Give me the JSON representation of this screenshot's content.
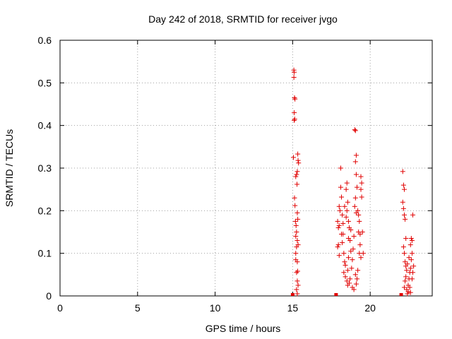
{
  "chart_data": {
    "type": "scatter",
    "title": "Day 242 of 2018, SRMTID for receiver jvgo",
    "xlabel": "GPS time / hours",
    "ylabel": "SRMTID / TECUs",
    "xlim": [
      0,
      24
    ],
    "ylim": [
      0,
      0.6
    ],
    "xticks": [
      0,
      5,
      10,
      15,
      20
    ],
    "xtick_labels": [
      "0",
      "5",
      "10",
      "15",
      "20"
    ],
    "yticks": [
      0,
      0.1,
      0.2,
      0.3,
      0.4,
      0.5,
      0.6
    ],
    "ytick_labels": [
      "0",
      "0.1",
      "0.2",
      "0.3",
      "0.4",
      "0.5",
      "0.6"
    ],
    "grid": true,
    "marker": "+",
    "color": "#e00000",
    "series": [
      {
        "name": "SRMTID",
        "points": [
          [
            15.08,
            0.53
          ],
          [
            15.1,
            0.525
          ],
          [
            15.08,
            0.513
          ],
          [
            15.12,
            0.465
          ],
          [
            15.15,
            0.462
          ],
          [
            15.1,
            0.43
          ],
          [
            15.13,
            0.415
          ],
          [
            15.1,
            0.412
          ],
          [
            15.05,
            0.325
          ],
          [
            15.33,
            0.333
          ],
          [
            15.35,
            0.318
          ],
          [
            15.38,
            0.312
          ],
          [
            15.3,
            0.292
          ],
          [
            15.25,
            0.285
          ],
          [
            15.2,
            0.28
          ],
          [
            15.28,
            0.262
          ],
          [
            15.12,
            0.23
          ],
          [
            15.15,
            0.212
          ],
          [
            15.3,
            0.195
          ],
          [
            15.33,
            0.18
          ],
          [
            15.18,
            0.175
          ],
          [
            15.22,
            0.165
          ],
          [
            15.25,
            0.15
          ],
          [
            15.3,
            0.13
          ],
          [
            15.2,
            0.14
          ],
          [
            15.35,
            0.12
          ],
          [
            15.25,
            0.115
          ],
          [
            15.2,
            0.085
          ],
          [
            15.3,
            0.08
          ],
          [
            15.32,
            0.058
          ],
          [
            15.25,
            0.055
          ],
          [
            15.3,
            0.035
          ],
          [
            15.35,
            0.025
          ],
          [
            15.25,
            0.015
          ],
          [
            15.3,
            0.005
          ],
          [
            15.2,
            0.1
          ],
          [
            17.9,
            0.175
          ],
          [
            17.95,
            0.16
          ],
          [
            18.0,
            0.165
          ],
          [
            17.95,
            0.12
          ],
          [
            17.9,
            0.115
          ],
          [
            18.0,
            0.095
          ],
          [
            18.05,
            0.2
          ],
          [
            18.0,
            0.21
          ],
          [
            18.1,
            0.255
          ],
          [
            18.1,
            0.3
          ],
          [
            18.15,
            0.232
          ],
          [
            18.2,
            0.19
          ],
          [
            18.25,
            0.145
          ],
          [
            18.2,
            0.125
          ],
          [
            18.3,
            0.1
          ],
          [
            18.35,
            0.08
          ],
          [
            18.4,
            0.072
          ],
          [
            18.45,
            0.25
          ],
          [
            18.5,
            0.265
          ],
          [
            18.55,
            0.22
          ],
          [
            18.5,
            0.2
          ],
          [
            18.6,
            0.175
          ],
          [
            18.65,
            0.16
          ],
          [
            18.6,
            0.135
          ],
          [
            18.7,
            0.13
          ],
          [
            18.75,
            0.105
          ],
          [
            18.6,
            0.09
          ],
          [
            18.55,
            0.06
          ],
          [
            18.5,
            0.035
          ],
          [
            18.55,
            0.025
          ],
          [
            18.65,
            0.03
          ],
          [
            18.7,
            0.04
          ],
          [
            18.8,
            0.065
          ],
          [
            18.85,
            0.085
          ],
          [
            18.9,
            0.11
          ],
          [
            18.95,
            0.14
          ],
          [
            19.0,
            0.39
          ],
          [
            19.05,
            0.388
          ],
          [
            19.1,
            0.33
          ],
          [
            19.05,
            0.315
          ],
          [
            19.1,
            0.285
          ],
          [
            19.15,
            0.255
          ],
          [
            19.05,
            0.23
          ],
          [
            19.0,
            0.21
          ],
          [
            19.1,
            0.195
          ],
          [
            19.2,
            0.2
          ],
          [
            19.25,
            0.19
          ],
          [
            19.3,
            0.175
          ],
          [
            19.25,
            0.15
          ],
          [
            19.35,
            0.145
          ],
          [
            19.4,
            0.28
          ],
          [
            19.45,
            0.265
          ],
          [
            19.4,
            0.25
          ],
          [
            19.45,
            0.232
          ],
          [
            19.35,
            0.12
          ],
          [
            19.3,
            0.1
          ],
          [
            19.4,
            0.09
          ],
          [
            19.2,
            0.06
          ],
          [
            19.15,
            0.04
          ],
          [
            19.1,
            0.028
          ],
          [
            19.05,
            0.05
          ],
          [
            18.95,
            0.015
          ],
          [
            18.85,
            0.02
          ],
          [
            18.4,
            0.045
          ],
          [
            18.3,
            0.055
          ],
          [
            18.25,
            0.17
          ],
          [
            18.15,
            0.145
          ],
          [
            18.35,
            0.21
          ],
          [
            18.45,
            0.185
          ],
          [
            18.75,
            0.155
          ],
          [
            19.5,
            0.15
          ],
          [
            19.55,
            0.1
          ],
          [
            22.1,
            0.292
          ],
          [
            22.15,
            0.26
          ],
          [
            22.2,
            0.25
          ],
          [
            22.1,
            0.22
          ],
          [
            22.15,
            0.205
          ],
          [
            22.2,
            0.19
          ],
          [
            22.25,
            0.18
          ],
          [
            22.3,
            0.135
          ],
          [
            22.15,
            0.115
          ],
          [
            22.2,
            0.1
          ],
          [
            22.25,
            0.08
          ],
          [
            22.3,
            0.07
          ],
          [
            22.35,
            0.06
          ],
          [
            22.3,
            0.045
          ],
          [
            22.25,
            0.035
          ],
          [
            22.2,
            0.02
          ],
          [
            22.35,
            0.015
          ],
          [
            22.4,
            0.005
          ],
          [
            22.45,
            0.025
          ],
          [
            22.5,
            0.04
          ],
          [
            22.55,
            0.055
          ],
          [
            22.6,
            0.065
          ],
          [
            22.65,
            0.085
          ],
          [
            22.7,
            0.1
          ],
          [
            22.6,
            0.12
          ],
          [
            22.65,
            0.135
          ],
          [
            22.7,
            0.13
          ],
          [
            22.75,
            0.19
          ],
          [
            22.8,
            0.07
          ],
          [
            22.75,
            0.055
          ],
          [
            22.7,
            0.04
          ],
          [
            22.55,
            0.02
          ],
          [
            22.45,
            0.01
          ],
          [
            22.6,
            0.008
          ],
          [
            22.4,
            0.075
          ],
          [
            22.5,
            0.09
          ]
        ]
      }
    ],
    "zero_points": [
      15.0,
      17.8,
      22.0
    ]
  }
}
